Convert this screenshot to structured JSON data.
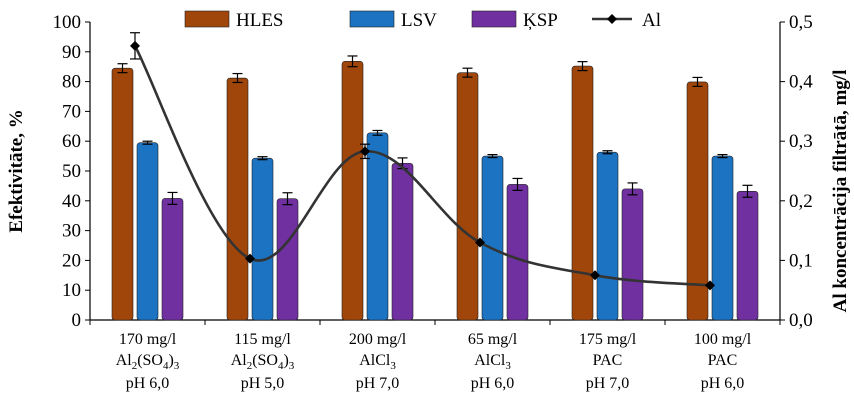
{
  "chart_data": {
    "type": "bar",
    "y_axis_left": {
      "label": "Efektivitāte, %",
      "range": [
        0,
        100
      ],
      "ticks": [
        0,
        10,
        20,
        30,
        40,
        50,
        60,
        70,
        80,
        90,
        100
      ]
    },
    "y_axis_right": {
      "label": "Al koncentrācija filtrātā, mg/l",
      "range": [
        0.0,
        0.5
      ],
      "ticks": [
        "0,0",
        "0,1",
        "0,2",
        "0,3",
        "0,4",
        "0,5"
      ]
    },
    "categories": [
      {
        "line1": "170 mg/l",
        "line2_main": "Al",
        "line2_sub1": "2",
        "line2_mid": "(SO",
        "line2_sub2": "4",
        "line2_end": ")",
        "line2_sub3": "3",
        "line3": "pH 6,0"
      },
      {
        "line1": "115 mg/l",
        "line2_main": "Al",
        "line2_sub1": "2",
        "line2_mid": "(SO",
        "line2_sub2": "4",
        "line2_end": ")",
        "line2_sub3": "3",
        "line3": "pH 5,0"
      },
      {
        "line1": "200 mg/l",
        "line2_main": "AlCl",
        "line2_sub1": "3",
        "line2_mid": "",
        "line2_sub2": "",
        "line2_end": "",
        "line2_sub3": "",
        "line3": "pH 7,0"
      },
      {
        "line1": "65 mg/l",
        "line2_main": "AlCl",
        "line2_sub1": "3",
        "line2_mid": "",
        "line2_sub2": "",
        "line2_end": "",
        "line2_sub3": "",
        "line3": "pH 6,0"
      },
      {
        "line1": "175 mg/l",
        "line2_main": "PAC",
        "line2_sub1": "",
        "line2_mid": "",
        "line2_sub2": "",
        "line2_end": "",
        "line2_sub3": "",
        "line3": "pH 7,0"
      },
      {
        "line1": "100 mg/l",
        "line2_main": "PAC",
        "line2_sub1": "",
        "line2_mid": "",
        "line2_sub2": "",
        "line2_end": "",
        "line2_sub3": "",
        "line3": "pH 6,0"
      }
    ],
    "series": [
      {
        "name": "HLES",
        "color": "#A0460A",
        "values": [
          84.5,
          81.2,
          86.8,
          83.0,
          85.2,
          79.9
        ],
        "errors": [
          1.5,
          1.5,
          1.8,
          1.5,
          1.5,
          1.5
        ]
      },
      {
        "name": "LSV",
        "color": "#1B73C2",
        "values": [
          59.5,
          54.3,
          62.8,
          55.0,
          56.3,
          55.0
        ],
        "errors": [
          0.5,
          0.5,
          0.8,
          0.5,
          0.5,
          0.5
        ]
      },
      {
        "name": "ĶSP",
        "color": "#7030A0",
        "values": [
          40.8,
          40.7,
          52.6,
          45.5,
          44.0,
          43.2
        ],
        "errors": [
          2.0,
          2.0,
          1.8,
          2.0,
          2.0,
          2.0
        ]
      }
    ],
    "line_series": {
      "name": "Al",
      "color": "#333333",
      "values": [
        0.46,
        0.103,
        0.283,
        0.13,
        0.075,
        0.058
      ],
      "errors": [
        0.022,
        0.0,
        0.012,
        0.0,
        0.0,
        0.0
      ]
    },
    "legend_position": "top",
    "grid": false
  }
}
